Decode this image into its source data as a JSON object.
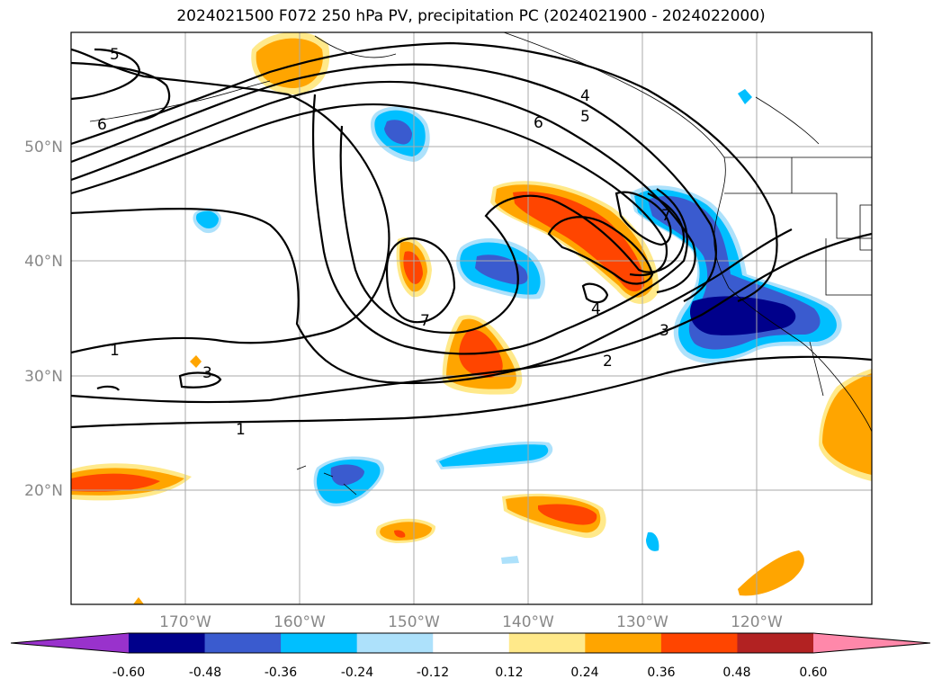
{
  "title": "2024021500 F072 250 hPa PV, precipitation PC (2024021900 - 2024022000)",
  "map": {
    "lat_ticks": [
      "50°N",
      "40°N",
      "30°N",
      "20°N"
    ],
    "lon_ticks": [
      "170°W",
      "160°W",
      "150°W",
      "140°W",
      "130°W",
      "120°W"
    ],
    "contour_labels": [
      "5",
      "6",
      "4",
      "5",
      "6",
      "7",
      "7",
      "4",
      "3",
      "3",
      "2",
      "1",
      "1"
    ],
    "contour_color": "#000000"
  },
  "colorbar": {
    "colors": [
      "#9932CC",
      "#00008B",
      "#3A5BCF",
      "#00BFFF",
      "#ADE1FB",
      "#FFFFFF",
      "#FFE98A",
      "#FFA500",
      "#FF4500",
      "#B22222",
      "#FF88AA"
    ],
    "ticks": [
      "-0.60",
      "-0.48",
      "-0.36",
      "-0.24",
      "-0.12",
      "0.12",
      "0.24",
      "0.36",
      "0.48",
      "0.60"
    ]
  }
}
